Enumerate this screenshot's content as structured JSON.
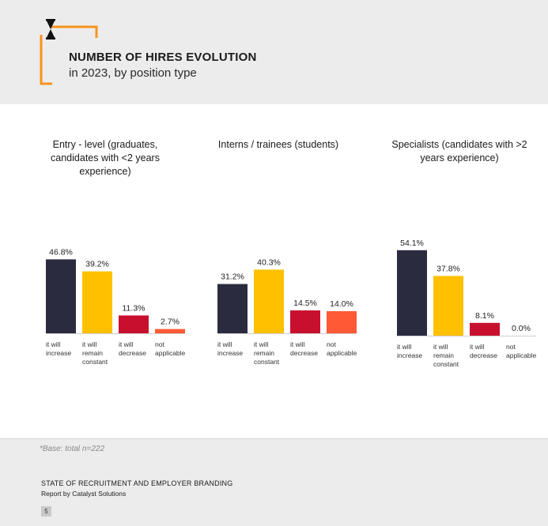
{
  "header": {
    "title": "NUMBER OF HIRES EVOLUTION",
    "subtitle": "in 2023, by position type"
  },
  "colors": {
    "header_bg": "#ececec",
    "accent_orange": "#f7941d",
    "series": [
      "#2b2b40",
      "#ffc000",
      "#c8102e",
      "#ff5a36"
    ]
  },
  "chart_data": [
    {
      "type": "bar",
      "title": "Entry - level (graduates, candidates with <2 years experience)",
      "categories": [
        "it will increase",
        "it will remain constant",
        "it will decrease",
        "not applicable"
      ],
      "values": [
        46.8,
        39.2,
        11.3,
        2.7
      ],
      "labels": [
        "46.8%",
        "39.2%",
        "11.3%",
        "2.7%"
      ],
      "ylim": [
        0,
        60
      ]
    },
    {
      "type": "bar",
      "title": "Interns / trainees (students)",
      "categories": [
        "it will increase",
        "it will remain constant",
        "it will decrease",
        "not applicable"
      ],
      "values": [
        31.2,
        40.3,
        14.5,
        14.0
      ],
      "labels": [
        "31.2%",
        "40.3%",
        "14.5%",
        "14.0%"
      ],
      "ylim": [
        0,
        60
      ]
    },
    {
      "type": "bar",
      "title": "Specialists (candidates with >2 years experience)",
      "categories": [
        "it will increase",
        "it will remain constant",
        "it will decrease",
        "not applicable"
      ],
      "values": [
        54.1,
        37.8,
        8.1,
        0.0
      ],
      "labels": [
        "54.1%",
        "37.8%",
        "8.1%",
        "0.0%"
      ],
      "ylim": [
        0,
        60
      ]
    }
  ],
  "footer": {
    "base_note": "*Base: total n=222",
    "report_title": "STATE OF RECRUITMENT AND EMPLOYER BRANDING",
    "report_sub": "Report by Catalyst Solutions",
    "page_number": "5"
  }
}
